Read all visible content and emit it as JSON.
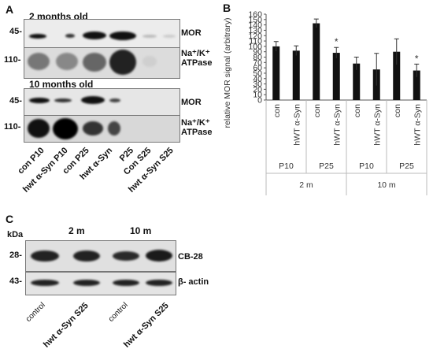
{
  "panelA": {
    "letter": "A",
    "age_top": "2 months old",
    "age_bottom": "10 months old",
    "marker_45": "45-",
    "marker_110": "110-",
    "mor": "MOR",
    "atpase_line1": "Na⁺/K⁺",
    "atpase_line2": "ATPase",
    "lanes": [
      "con P10",
      "hwt α-Syn P10",
      "con P25",
      "hwt α-Syn",
      "P25",
      "Con S25",
      "hwt α-Syn S25"
    ]
  },
  "panelB": {
    "letter": "B",
    "chart_data": {
      "type": "bar",
      "ylabel": "relative MOR signal (arbitrary)",
      "ylim": [
        0,
        160
      ],
      "yticks": [
        0,
        10,
        20,
        30,
        40,
        50,
        60,
        70,
        80,
        90,
        100,
        110,
        120,
        130,
        140,
        150,
        160
      ],
      "categories": [
        "con",
        "hWT α-Syn",
        "con",
        "hWT α-Syn",
        "con",
        "hWT α-Syn",
        "con",
        "hWT α-Syn"
      ],
      "values": [
        100,
        92,
        143,
        88,
        68,
        57,
        90,
        55
      ],
      "errors": [
        9,
        9,
        8,
        10,
        12,
        30,
        24,
        12
      ],
      "significance": [
        "",
        "",
        "",
        "*",
        "",
        "",
        "",
        "*"
      ],
      "group_labels_level1": [
        "P10",
        "P25",
        "P10",
        "P25"
      ],
      "group_labels_level2": [
        "2 m",
        "10 m"
      ]
    }
  },
  "panelC": {
    "letter": "C",
    "kda": "kDa",
    "age_left": "2 m",
    "age_right": "10 m",
    "marker_28": "28-",
    "marker_43": "43-",
    "cb28": "CB-28",
    "actin": "β- actin",
    "lanes": [
      {
        "text": "control",
        "bold": false
      },
      {
        "text": "hwt α-Syn S25",
        "bold": true
      },
      {
        "text": "control",
        "bold": false
      },
      {
        "text": "hwt α-Syn S25",
        "bold": true
      }
    ]
  }
}
